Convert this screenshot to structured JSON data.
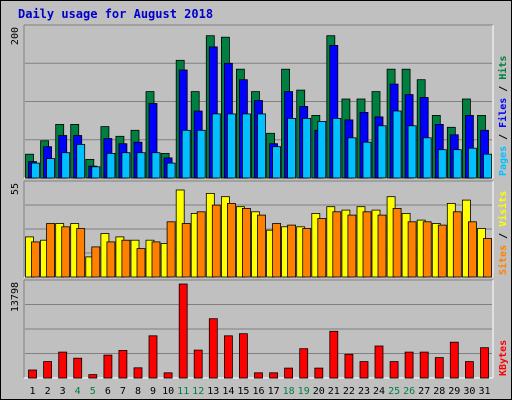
{
  "chart_data": {
    "title": "Daily usage for August 2018",
    "days": [
      "1",
      "2",
      "3",
      "4",
      "5",
      "6",
      "7",
      "8",
      "9",
      "10",
      "11",
      "12",
      "13",
      "14",
      "15",
      "16",
      "17",
      "18",
      "19",
      "20",
      "21",
      "22",
      "23",
      "24",
      "25",
      "26",
      "27",
      "28",
      "29",
      "30",
      "31"
    ],
    "weekend_days": [
      "4",
      "5",
      "11",
      "12",
      "18",
      "19",
      "25",
      "26"
    ],
    "colors": {
      "hits": "#008040",
      "files": "#0000ff",
      "pages": "#00c0ff",
      "visits": "#ffff00",
      "sites": "#ff8000",
      "kbytes": "#ff0000",
      "weekday_label": "#000000",
      "weekend_label": "#008040"
    },
    "panels": [
      {
        "type": "bar",
        "ymax_label": "200",
        "ymax": 200,
        "labels": [
          {
            "text": "Pages",
            "color": "#00c0ff"
          },
          {
            "text": "Files",
            "color": "#0000ff"
          },
          {
            "text": "Hits",
            "color": "#008040"
          }
        ],
        "separator": " / ",
        "series": [
          {
            "name": "Hits",
            "color": "#008040",
            "values": [
              32,
              50,
              72,
              72,
              25,
              69,
              56,
              64,
              116,
              33,
              158,
              116,
              191,
              189,
              146,
              116,
              60,
              146,
              118,
              84,
              191,
              106,
              106,
              116,
              146,
              146,
              132,
              84,
              68,
              106,
              84
            ]
          },
          {
            "name": "Files",
            "color": "#0000ff",
            "values": [
              22,
              42,
              57,
              57,
              16,
              53,
              46,
              48,
              100,
              27,
              145,
              90,
              176,
              154,
              132,
              104,
              46,
              116,
              96,
              64,
              178,
              78,
              88,
              82,
              126,
              112,
              108,
              72,
              58,
              84,
              64
            ]
          },
          {
            "name": "Pages",
            "color": "#00c0ff",
            "values": [
              20,
              26,
              34,
              45,
              15,
              33,
              34,
              34,
              34,
              20,
              64,
              64,
              86,
              86,
              86,
              86,
              42,
              80,
              80,
              76,
              80,
              54,
              48,
              70,
              90,
              70,
              54,
              38,
              38,
              40,
              32
            ]
          }
        ]
      },
      {
        "type": "bar",
        "ymax_label": "55",
        "ymax": 55,
        "labels": [
          {
            "text": "Sites",
            "color": "#ff8000"
          },
          {
            "text": "Visits",
            "color": "#ffff00"
          }
        ],
        "separator": " / ",
        "series": [
          {
            "name": "Visits",
            "color": "#ffff00",
            "values": [
              24,
              22,
              32,
              32,
              12,
              26,
              24,
              22,
              22,
              20,
              52,
              38,
              50,
              48,
              42,
              39,
              28,
              30,
              30,
              38,
              42,
              40,
              42,
              40,
              48,
              38,
              34,
              32,
              44,
              46,
              29
            ]
          },
          {
            "name": "Sites",
            "color": "#ff8000",
            "values": [
              21,
              32,
              30,
              29,
              18,
              21,
              22,
              17,
              21,
              33,
              32,
              39,
              43,
              44,
              41,
              37,
              32,
              31,
              29,
              35,
              39,
              37,
              39,
              37,
              41,
              33,
              33,
              31,
              39,
              33,
              23
            ]
          }
        ]
      },
      {
        "type": "bar",
        "ymax_label": "13798",
        "ymax": 13798,
        "labels": [
          {
            "text": "KBytes",
            "color": "#ff0000"
          }
        ],
        "separator": " / ",
        "series": [
          {
            "name": "KBytes",
            "color": "#ff0000",
            "values": [
              1170,
              2400,
              3800,
              2900,
              500,
              3360,
              4050,
              1500,
              6200,
              770,
              13798,
              4100,
              8700,
              6200,
              6500,
              770,
              770,
              1460,
              4300,
              1460,
              6850,
              3480,
              2400,
              4700,
              2400,
              3800,
              3800,
              3000,
              5250,
              2400,
              4450
            ]
          }
        ]
      }
    ]
  }
}
